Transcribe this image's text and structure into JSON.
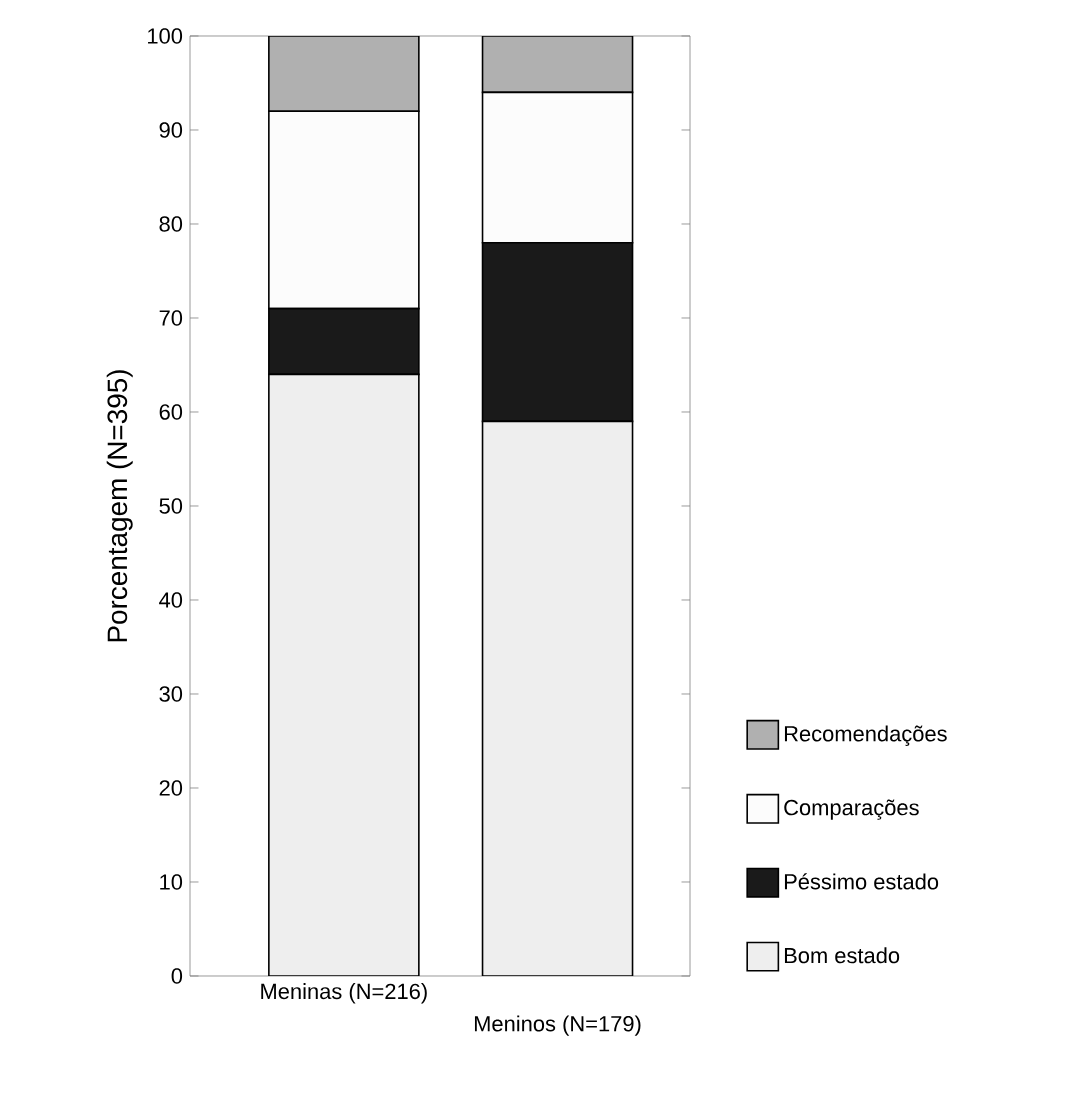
{
  "chart_data": {
    "type": "bar",
    "stacked": true,
    "ylabel": "Porcentagem (N=395)",
    "categories": [
      "Meninas (N=216)",
      "Meninos (N=179)"
    ],
    "series": [
      {
        "name": "Bom estado",
        "color": "#eeeeee",
        "values": [
          64,
          59
        ]
      },
      {
        "name": "Péssimo estado",
        "color": "#1a1a1a",
        "values": [
          7,
          19
        ]
      },
      {
        "name": "Comparações",
        "color": "#fcfcfc",
        "values": [
          21,
          16
        ]
      },
      {
        "name": "Recomendações",
        "color": "#b0b0b0",
        "values": [
          8,
          6
        ]
      }
    ],
    "ylim": [
      0,
      100
    ],
    "yticks": [
      0,
      10,
      20,
      30,
      40,
      50,
      60,
      70,
      80,
      90,
      100
    ],
    "legend": "right",
    "grid": false
  }
}
